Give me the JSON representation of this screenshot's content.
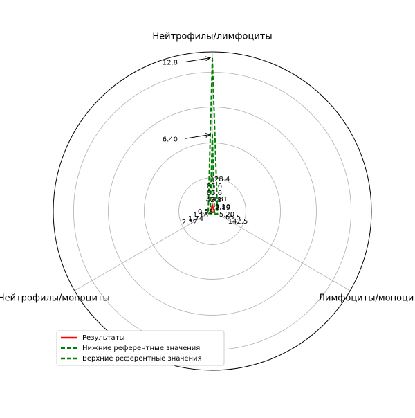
{
  "chart_data": {
    "type": "radar",
    "categories": [
      "Нейтрофилы/лимфоциты",
      "Нейтрофилы/моноциты",
      "Лимфоциты/моноциты"
    ],
    "rlim": [
      0,
      13.3
    ],
    "rticks": [
      2.8,
      5.7,
      8.7,
      11.6
    ],
    "grid": true,
    "legend": "lower left",
    "series": [
      {
        "name": "Результаты",
        "color": "#ff0000",
        "dash": false,
        "values": [
          0.5,
          0.2,
          0.2
        ]
      },
      {
        "name": "Нижние референтные значения",
        "color": "#008000",
        "dash": true,
        "values": [
          6.4,
          0.2,
          0.2
        ]
      },
      {
        "name": "Верхние референтные значения",
        "color": "#008000",
        "dash": true,
        "values": [
          12.8,
          0.4,
          0.5
        ]
      }
    ],
    "annotations": [
      {
        "value": 12.8,
        "label": "12.8"
      },
      {
        "value": 6.4,
        "label": "6.40"
      }
    ],
    "center_labels": [
      "128.4",
      "85.6",
      "85.6",
      "42.8",
      "4.81",
      "3.10",
      "2.89",
      "5.20",
      "65.5",
      "142.5",
      "0.58",
      "1.16",
      "1.74",
      "2.32"
    ]
  }
}
